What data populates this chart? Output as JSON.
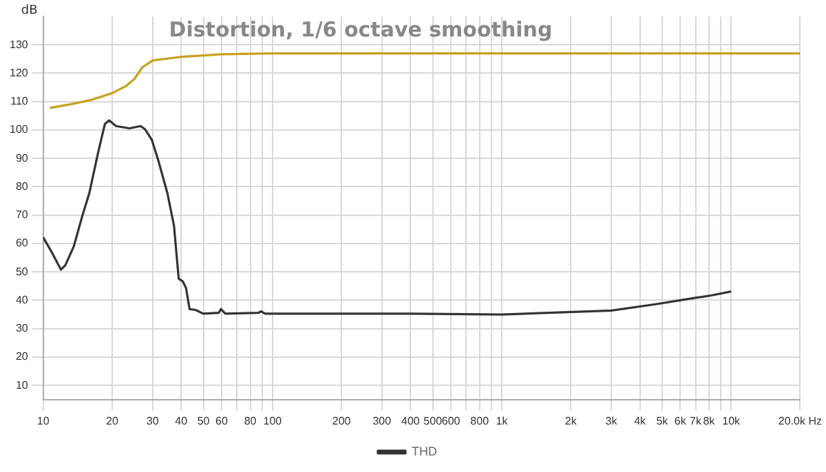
{
  "chart_data": {
    "type": "line",
    "title": "Distortion, 1/6 octave smoothing",
    "ylabel": "dB",
    "log": "x",
    "grid": true,
    "legend": "bottom",
    "marker": "none",
    "line_style": "solid",
    "xlim": [
      10,
      20000
    ],
    "ylim": [
      5,
      140
    ],
    "xticks": [
      10,
      20,
      30,
      40,
      50,
      60,
      {
        "value": 70,
        "label": null
      },
      80,
      {
        "value": 90,
        "label": null
      },
      100,
      200,
      300,
      400,
      500,
      600,
      {
        "value": 700,
        "label": null
      },
      800,
      {
        "value": 900,
        "label": null
      },
      {
        "value": 1000,
        "label": "1k"
      },
      {
        "value": 2000,
        "label": "2k"
      },
      {
        "value": 3000,
        "label": "3k"
      },
      {
        "value": 4000,
        "label": "4k"
      },
      {
        "value": 5000,
        "label": "5k"
      },
      {
        "value": 6000,
        "label": "6k"
      },
      {
        "value": 7000,
        "label": "7k"
      },
      {
        "value": 8000,
        "label": "8k"
      },
      {
        "value": 9000,
        "label": null
      },
      {
        "value": 10000,
        "label": "10k"
      },
      {
        "value": 20000,
        "label": "20.0k Hz"
      }
    ],
    "yticks": [
      10,
      20,
      30,
      40,
      50,
      60,
      70,
      80,
      90,
      100,
      110,
      120,
      130
    ],
    "series": [
      {
        "color": "#c8a020",
        "x": [
          10.7,
          13,
          16,
          20,
          23,
          25,
          27,
          30,
          40,
          60,
          100,
          1000,
          20000
        ],
        "values": [
          107.8,
          109,
          110.5,
          113,
          115.5,
          118,
          122,
          124.5,
          125.8,
          126.7,
          127,
          127,
          127
        ]
      },
      {
        "name": "THD",
        "color": "#333333",
        "x": [
          10,
          10.84,
          11.96,
          12.5,
          13.6,
          14.8,
          15.9,
          17.4,
          18.6,
          19.4,
          20.8,
          23.8,
          26.6,
          27.8,
          29.8,
          31.8,
          34.8,
          37.2,
          39,
          40.6,
          42,
          43.5,
          46.2,
          49.9,
          58.3,
          59.6,
          62.3,
          87,
          89,
          93,
          400,
          1000,
          3000,
          4670,
          6200,
          8300,
          10000
        ],
        "values": [
          62.2,
          57.3,
          50.8,
          52.4,
          59,
          69.6,
          77.8,
          92.4,
          102.2,
          103.4,
          101.4,
          100.6,
          101.4,
          100.3,
          96.5,
          89.2,
          77.8,
          66.3,
          47.6,
          46.7,
          44.3,
          36.9,
          36.6,
          35.3,
          35.6,
          36.9,
          35.3,
          35.6,
          36.1,
          35.3,
          35.3,
          35,
          36.4,
          38.6,
          40.2,
          41.8,
          43.1
        ]
      }
    ]
  }
}
